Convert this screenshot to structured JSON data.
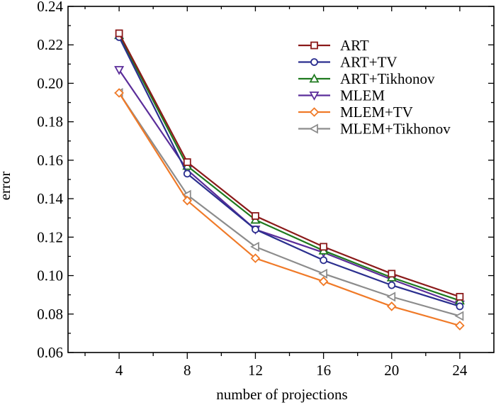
{
  "chart_data": {
    "type": "line",
    "title": "",
    "xlabel": "number of projections",
    "ylabel": "error",
    "x": [
      4,
      8,
      12,
      16,
      20,
      24
    ],
    "xticks": [
      4,
      8,
      12,
      16,
      20,
      24
    ],
    "yticks": [
      "0.06",
      "0.08",
      "0.10",
      "0.12",
      "0.14",
      "0.16",
      "0.18",
      "0.20",
      "0.22",
      "0.24"
    ],
    "xlim": [
      1,
      26
    ],
    "ylim": [
      0.06,
      0.24
    ],
    "grid": false,
    "legend_position": "top-right",
    "series": [
      {
        "name": "ART",
        "color": "#8b1a1a",
        "marker": "square",
        "values": [
          0.226,
          0.159,
          0.131,
          0.115,
          0.101,
          0.089
        ]
      },
      {
        "name": "ART+TV",
        "color": "#2b2f8f",
        "marker": "circle",
        "values": [
          0.224,
          0.153,
          0.124,
          0.108,
          0.095,
          0.084
        ]
      },
      {
        "name": "ART+Tikhonov",
        "color": "#1f7a1f",
        "marker": "triangle-up",
        "values": [
          0.225,
          0.157,
          0.129,
          0.113,
          0.099,
          0.087
        ]
      },
      {
        "name": "MLEM",
        "color": "#5b2d9a",
        "marker": "triangle-down",
        "values": [
          0.207,
          0.155,
          0.124,
          0.112,
          0.098,
          0.085
        ]
      },
      {
        "name": "MLEM+TV",
        "color": "#f07a28",
        "marker": "diamond",
        "values": [
          0.195,
          0.139,
          0.109,
          0.097,
          0.084,
          0.074
        ]
      },
      {
        "name": "MLEM+Tikhonov",
        "color": "#8c8c8c",
        "marker": "triangle-left",
        "values": [
          0.195,
          0.142,
          0.115,
          0.101,
          0.089,
          0.079
        ]
      }
    ]
  }
}
